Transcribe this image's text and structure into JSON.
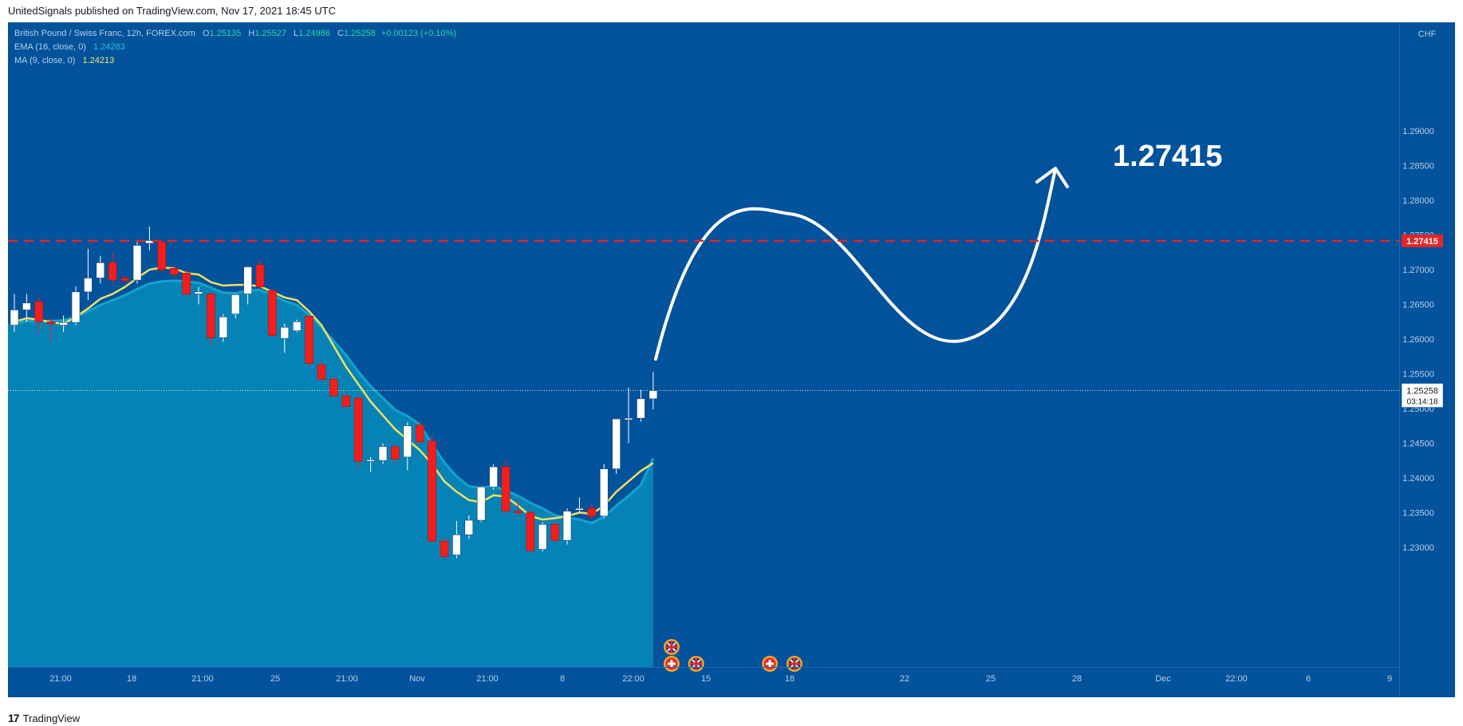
{
  "header": {
    "text": "UnitedSignals published on TradingView.com, Nov 17, 2021 18:45 UTC"
  },
  "legend": {
    "symbol": "British Pound / Swiss Franc, 12h, FOREX.com",
    "open_label": "O",
    "open": "1.25135",
    "high_label": "H",
    "high": "1.25527",
    "low_label": "L",
    "low": "1.24986",
    "close_label": "C",
    "close": "1.25258",
    "change": "+0.00123 (+0.10%)",
    "ema_label": "EMA (16, close, 0)",
    "ema_value": "1.24283",
    "ma_label": "MA (9, close, 0)",
    "ma_value": "1.24213"
  },
  "footer": {
    "logo": "17",
    "brand": "TradingView"
  },
  "chart_data": {
    "type": "candlestick",
    "currency": "CHF",
    "ylim": [
      1.226,
      1.2915
    ],
    "y_ticks": [
      "1.29000",
      "1.28500",
      "1.28000",
      "1.27500",
      "1.27000",
      "1.26500",
      "1.26000",
      "1.25500",
      "1.25000",
      "1.24500",
      "1.24000",
      "1.23500",
      "1.23000"
    ],
    "x_ticks": [
      "21:00",
      "18",
      "21:00",
      "25",
      "21:00",
      "Nov",
      "21:00",
      "8",
      "22:00",
      "15",
      "18",
      "22",
      "25",
      "28",
      "Dec",
      "22:00",
      "6",
      "9"
    ],
    "target_level": 1.27415,
    "target_label": "1.27415",
    "last_price": "1.25258",
    "countdown": "03:14:18",
    "candles": [
      [
        1.262,
        1.2665,
        1.261,
        1.2642
      ],
      [
        1.2642,
        1.2665,
        1.2625,
        1.2652
      ],
      [
        1.2654,
        1.266,
        1.2608,
        1.2625
      ],
      [
        1.2625,
        1.263,
        1.2595,
        1.2622
      ],
      [
        1.262,
        1.2634,
        1.261,
        1.2624
      ],
      [
        1.2624,
        1.2676,
        1.262,
        1.2668
      ],
      [
        1.2668,
        1.273,
        1.2656,
        1.2688
      ],
      [
        1.2688,
        1.272,
        1.268,
        1.271
      ],
      [
        1.271,
        1.2725,
        1.2678,
        1.2685
      ],
      [
        1.2688,
        1.2692,
        1.2683,
        1.2684
      ],
      [
        1.2685,
        1.274,
        1.268,
        1.2735
      ],
      [
        1.2738,
        1.2762,
        1.2728,
        1.2742
      ],
      [
        1.274,
        1.2742,
        1.2697,
        1.27
      ],
      [
        1.2702,
        1.2705,
        1.269,
        1.2693
      ],
      [
        1.2695,
        1.27,
        1.266,
        1.2665
      ],
      [
        1.2665,
        1.2675,
        1.265,
        1.2668
      ],
      [
        1.2665,
        1.2667,
        1.259,
        1.2602
      ],
      [
        1.2602,
        1.2636,
        1.2596,
        1.2632
      ],
      [
        1.2636,
        1.2665,
        1.263,
        1.2664
      ],
      [
        1.2665,
        1.2705,
        1.265,
        1.2704
      ],
      [
        1.2707,
        1.2715,
        1.2672,
        1.2675
      ],
      [
        1.267,
        1.2672,
        1.2605,
        1.2605
      ],
      [
        1.2601,
        1.2622,
        1.258,
        1.2617
      ],
      [
        1.2612,
        1.2628,
        1.261,
        1.2625
      ],
      [
        1.2633,
        1.2633,
        1.2562,
        1.2565
      ],
      [
        1.2563,
        1.257,
        1.254,
        1.2542
      ],
      [
        1.2542,
        1.2546,
        1.2517,
        1.2518
      ],
      [
        1.2518,
        1.2525,
        1.25,
        1.2503
      ],
      [
        1.2515,
        1.2518,
        1.2413,
        1.2424
      ],
      [
        1.2424,
        1.243,
        1.2408,
        1.2426
      ],
      [
        1.2425,
        1.245,
        1.242,
        1.2445
      ],
      [
        1.2445,
        1.2448,
        1.242,
        1.2427
      ],
      [
        1.243,
        1.248,
        1.2411,
        1.2475
      ],
      [
        1.2476,
        1.2482,
        1.2448,
        1.2452
      ],
      [
        1.2453,
        1.2462,
        1.2307,
        1.2309
      ],
      [
        1.2309,
        1.2315,
        1.2282,
        1.2287
      ],
      [
        1.2289,
        1.2338,
        1.2284,
        1.2318
      ],
      [
        1.2318,
        1.2346,
        1.2312,
        1.2339
      ],
      [
        1.2339,
        1.2388,
        1.2336,
        1.2387
      ],
      [
        1.2387,
        1.242,
        1.2383,
        1.2416
      ],
      [
        1.2416,
        1.2427,
        1.2348,
        1.2352
      ],
      [
        1.2352,
        1.237,
        1.2346,
        1.235
      ],
      [
        1.235,
        1.2354,
        1.2293,
        1.2295
      ],
      [
        1.2297,
        1.2336,
        1.2294,
        1.2333
      ],
      [
        1.2333,
        1.2338,
        1.2308,
        1.231
      ],
      [
        1.231,
        1.2356,
        1.2304,
        1.2352
      ],
      [
        1.2354,
        1.2372,
        1.2349,
        1.2356
      ],
      [
        1.2356,
        1.2362,
        1.234,
        1.2345
      ],
      [
        1.2345,
        1.242,
        1.2342,
        1.2413
      ],
      [
        1.2413,
        1.2485,
        1.2406,
        1.2485
      ],
      [
        1.2485,
        1.253,
        1.245,
        1.2486
      ],
      [
        1.2486,
        1.2527,
        1.2481,
        1.2514
      ],
      [
        1.2514,
        1.25527,
        1.24986,
        1.25258
      ]
    ],
    "ema_16": [
      1.2622,
      1.2626,
      1.2626,
      1.2626,
      1.2627,
      1.2632,
      1.264,
      1.2649,
      1.2656,
      1.2663,
      1.2672,
      1.268,
      1.2683,
      1.2684,
      1.2683,
      1.2681,
      1.2674,
      1.2667,
      1.2666,
      1.267,
      1.2671,
      1.2664,
      1.2655,
      1.2649,
      1.2635,
      1.2617,
      1.2597,
      1.2577,
      1.2553,
      1.2532,
      1.2515,
      1.2498,
      1.2489,
      1.2477,
      1.2449,
      1.2422,
      1.2402,
      1.2388,
      1.2386,
      1.2388,
      1.2382,
      1.2374,
      1.2364,
      1.2356,
      1.2346,
      1.2343,
      1.234,
      1.2335,
      1.2344,
      1.236,
      1.2374,
      1.239,
      1.24283
    ],
    "ma_9": [
      1.2625,
      1.263,
      1.2628,
      1.2624,
      1.2622,
      1.2632,
      1.2644,
      1.2658,
      1.2665,
      1.2675,
      1.2688,
      1.27,
      1.2703,
      1.2702,
      1.2695,
      1.2693,
      1.2682,
      1.2677,
      1.2678,
      1.2678,
      1.2676,
      1.2668,
      1.266,
      1.2656,
      1.264,
      1.262,
      1.259,
      1.256,
      1.2535,
      1.251,
      1.249,
      1.247,
      1.2455,
      1.244,
      1.242,
      1.2395,
      1.238,
      1.2368,
      1.2365,
      1.2375,
      1.2373,
      1.236,
      1.2345,
      1.234,
      1.2342,
      1.2345,
      1.235,
      1.2348,
      1.236,
      1.238,
      1.2395,
      1.241,
      1.24213
    ],
    "markers": [
      {
        "flag": "uk",
        "x_index": 53.5,
        "row": 0
      },
      {
        "flag": "ch",
        "x_index": 53.5,
        "row": 1
      },
      {
        "flag": "uk",
        "x_index": 55.5,
        "row": 1
      },
      {
        "flag": "ch",
        "x_index": 61.5,
        "row": 1
      },
      {
        "flag": "uk",
        "x_index": 63.5,
        "row": 1
      }
    ]
  },
  "colors": {
    "background": "#02529c",
    "area": "#0683b6",
    "ema": "#12a4cd",
    "ma": "#f0e060",
    "bull": "#ffffff",
    "bear": "#f21e1e",
    "target": "#e32525",
    "text": "#b9cfe6"
  }
}
